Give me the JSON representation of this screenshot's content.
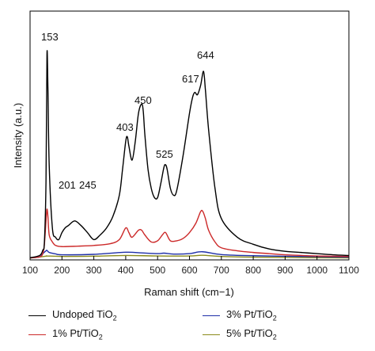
{
  "chart_data": {
    "type": "line",
    "title": "",
    "xlabel": "Raman shift (cm−1)",
    "ylabel": "Intensity (a.u.)",
    "xlim": [
      100,
      1100
    ],
    "x_ticks": [
      100,
      200,
      300,
      400,
      500,
      600,
      700,
      800,
      900,
      1000,
      1100
    ],
    "y_ticks_shown": false,
    "grid": false,
    "legend_position": "bottom",
    "peak_labels": [
      "153",
      "201",
      "245",
      "403",
      "450",
      "525",
      "617",
      "644"
    ],
    "series": [
      {
        "name": "Undoped TiO₂",
        "color": "#000000",
        "x": [
          100,
          130,
          140,
          145,
          150,
          153,
          156,
          160,
          170,
          180,
          190,
          200,
          210,
          220,
          240,
          260,
          280,
          300,
          320,
          340,
          360,
          380,
          390,
          400,
          405,
          410,
          420,
          430,
          440,
          450,
          455,
          460,
          470,
          480,
          490,
          500,
          510,
          520,
          525,
          530,
          540,
          550,
          560,
          580,
          600,
          610,
          617,
          625,
          635,
          644,
          650,
          660,
          680,
          700,
          750,
          800,
          850,
          900,
          950,
          1000,
          1050,
          1100
        ],
        "y": [
          0.25,
          1.2,
          3.5,
          7,
          33,
          87,
          73,
          40,
          13,
          9,
          8,
          11,
          13,
          14,
          16,
          14,
          11,
          8,
          10,
          13,
          18,
          27,
          38,
          50,
          52,
          48,
          42,
          50,
          62,
          66,
          63,
          53,
          38,
          30,
          26,
          26,
          32,
          39,
          40,
          38,
          30,
          27,
          29,
          44,
          62,
          69,
          71,
          70,
          74,
          80,
          72,
          55,
          30,
          17,
          9,
          6,
          4,
          3,
          2.5,
          2,
          1.5,
          1.2
        ]
      },
      {
        "name": "1% Pt/TiO₂",
        "color": "#cc2929",
        "x": [
          100,
          130,
          140,
          145,
          150,
          153,
          156,
          160,
          170,
          180,
          200,
          250,
          300,
          350,
          380,
          400,
          410,
          420,
          440,
          450,
          460,
          480,
          500,
          515,
          525,
          540,
          560,
          580,
          600,
          620,
          635,
          642,
          650,
          660,
          680,
          700,
          750,
          800,
          850,
          900,
          1000,
          1100
        ],
        "y": [
          0.2,
          0.6,
          2,
          6,
          16,
          21,
          18,
          10,
          7,
          5.5,
          5,
          5.2,
          5.5,
          6.2,
          8,
          13,
          11,
          9,
          12,
          12,
          10,
          7,
          7.5,
          10,
          11,
          7.5,
          7.5,
          8.5,
          11,
          15,
          20,
          20,
          17,
          12,
          7,
          4.5,
          3.2,
          2.5,
          2,
          1.5,
          1,
          0.8
        ]
      },
      {
        "name": "3% Pt/TiO₂",
        "color": "#1f2fa8",
        "x": [
          100,
          130,
          140,
          150,
          153,
          160,
          180,
          200,
          300,
          400,
          450,
          500,
          520,
          550,
          600,
          640,
          700,
          800,
          1000,
          1100
        ],
        "y": [
          0.2,
          0.6,
          2,
          3.2,
          3.4,
          2.5,
          1.9,
          1.5,
          1.7,
          2.6,
          2.3,
          2,
          2.2,
          1.8,
          2,
          2.8,
          1.6,
          1.1,
          0.7,
          0.5
        ]
      },
      {
        "name": "5% Pt/TiO₂",
        "color": "#8a8a1a",
        "x": [
          100,
          150,
          153,
          200,
          300,
          400,
          500,
          600,
          640,
          700,
          800,
          1000,
          1100
        ],
        "y": [
          0.1,
          0.9,
          1,
          0.8,
          0.9,
          1.2,
          1,
          1,
          1.3,
          0.8,
          0.5,
          0.3,
          0.2
        ]
      }
    ]
  }
}
